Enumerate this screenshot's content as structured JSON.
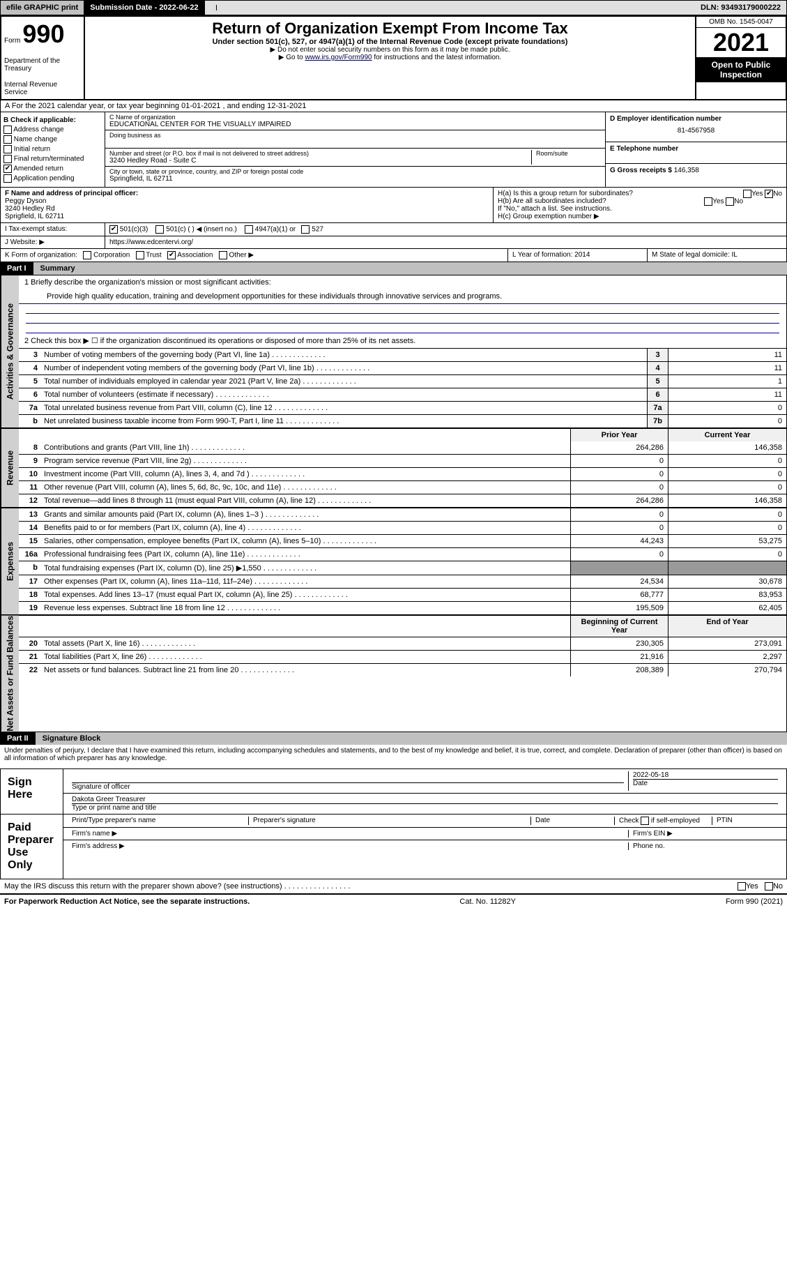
{
  "topbar": {
    "efile": "efile GRAPHIC print",
    "subdate_lbl": "Submission Date - 2022-06-22",
    "dln": "DLN: 93493179000222"
  },
  "header": {
    "form_word": "Form",
    "form_no": "990",
    "dept": "Department of the Treasury",
    "irs": "Internal Revenue Service",
    "title": "Return of Organization Exempt From Income Tax",
    "sub": "Under section 501(c), 527, or 4947(a)(1) of the Internal Revenue Code (except private foundations)",
    "note1": "▶ Do not enter social security numbers on this form as it may be made public.",
    "note2_pre": "▶ Go to ",
    "note2_link": "www.irs.gov/Form990",
    "note2_post": " for instructions and the latest information.",
    "omb": "OMB No. 1545-0047",
    "year": "2021",
    "open": "Open to Public Inspection"
  },
  "rowA": "A For the 2021 calendar year, or tax year beginning 01-01-2021    , and ending 12-31-2021",
  "boxB": {
    "title": "B Check if applicable:",
    "items": [
      "Address change",
      "Name change",
      "Initial return",
      "Final return/terminated",
      "Amended return",
      "Application pending"
    ],
    "checked_idx": 4
  },
  "boxC": {
    "name_lbl": "C Name of organization",
    "name": "EDUCATIONAL CENTER FOR THE VISUALLY IMPAIRED",
    "dba_lbl": "Doing business as",
    "addr_lbl": "Number and street (or P.O. box if mail is not delivered to street address)",
    "room_lbl": "Room/suite",
    "addr": "3240 Hedley Road - Suite C",
    "city_lbl": "City or town, state or province, country, and ZIP or foreign postal code",
    "city": "Springfield, IL  62711"
  },
  "boxD": {
    "lbl": "D Employer identification number",
    "val": "81-4567958"
  },
  "boxE": {
    "lbl": "E Telephone number",
    "val": ""
  },
  "boxG": {
    "lbl": "G Gross receipts $",
    "val": "146,358"
  },
  "boxF": {
    "lbl": "F Name and address of principal officer:",
    "name": "Peggy Dyson",
    "addr1": "3240 Hedley Rd",
    "addr2": "Sprigfield, IL  62711"
  },
  "boxH": {
    "a": "H(a)  Is this a group return for subordinates?",
    "b": "H(b)  Are all subordinates included?",
    "b_note": "If \"No,\" attach a list. See instructions.",
    "c": "H(c)  Group exemption number ▶",
    "yes": "Yes",
    "no": "No"
  },
  "rowI": {
    "lbl": "I   Tax-exempt status:",
    "opts": [
      "501(c)(3)",
      "501(c) (  ) ◀ (insert no.)",
      "4947(a)(1) or",
      "527"
    ]
  },
  "rowJ": {
    "lbl": "J   Website: ▶",
    "val": "https://www.edcentervi.org/"
  },
  "rowK": {
    "lbl": "K Form of organization:",
    "opts": [
      "Corporation",
      "Trust",
      "Association",
      "Other ▶"
    ],
    "checked_idx": 2,
    "L": "L Year of formation: 2014",
    "M": "M State of legal domicile: IL"
  },
  "part1": {
    "num": "Part I",
    "title": "Summary"
  },
  "summary": {
    "l1": "1   Briefly describe the organization's mission or most significant activities:",
    "mission": "Provide high quality education, training and development opportunities for these individuals through innovative services and programs.",
    "l2": "2   Check this box ▶ ☐  if the organization discontinued its operations or disposed of more than 25% of its net assets."
  },
  "gov_lines": [
    {
      "n": "3",
      "d": "Number of voting members of the governing body (Part VI, line 1a)",
      "b": "3",
      "v": "11"
    },
    {
      "n": "4",
      "d": "Number of independent voting members of the governing body (Part VI, line 1b)",
      "b": "4",
      "v": "11"
    },
    {
      "n": "5",
      "d": "Total number of individuals employed in calendar year 2021 (Part V, line 2a)",
      "b": "5",
      "v": "1"
    },
    {
      "n": "6",
      "d": "Total number of volunteers (estimate if necessary)",
      "b": "6",
      "v": "11"
    },
    {
      "n": "7a",
      "d": "Total unrelated business revenue from Part VIII, column (C), line 12",
      "b": "7a",
      "v": "0"
    },
    {
      "n": "b",
      "d": "Net unrelated business taxable income from Form 990-T, Part I, line 11",
      "b": "7b",
      "v": "0"
    }
  ],
  "rev_hdr": {
    "prior": "Prior Year",
    "curr": "Current Year"
  },
  "rev_lines": [
    {
      "n": "8",
      "d": "Contributions and grants (Part VIII, line 1h)",
      "p": "264,286",
      "c": "146,358"
    },
    {
      "n": "9",
      "d": "Program service revenue (Part VIII, line 2g)",
      "p": "0",
      "c": "0"
    },
    {
      "n": "10",
      "d": "Investment income (Part VIII, column (A), lines 3, 4, and 7d )",
      "p": "0",
      "c": "0"
    },
    {
      "n": "11",
      "d": "Other revenue (Part VIII, column (A), lines 5, 6d, 8c, 9c, 10c, and 11e)",
      "p": "0",
      "c": "0"
    },
    {
      "n": "12",
      "d": "Total revenue—add lines 8 through 11 (must equal Part VIII, column (A), line 12)",
      "p": "264,286",
      "c": "146,358"
    }
  ],
  "exp_lines": [
    {
      "n": "13",
      "d": "Grants and similar amounts paid (Part IX, column (A), lines 1–3 )",
      "p": "0",
      "c": "0"
    },
    {
      "n": "14",
      "d": "Benefits paid to or for members (Part IX, column (A), line 4)",
      "p": "0",
      "c": "0"
    },
    {
      "n": "15",
      "d": "Salaries, other compensation, employee benefits (Part IX, column (A), lines 5–10)",
      "p": "44,243",
      "c": "53,275"
    },
    {
      "n": "16a",
      "d": "Professional fundraising fees (Part IX, column (A), line 11e)",
      "p": "0",
      "c": "0"
    },
    {
      "n": "b",
      "d": "Total fundraising expenses (Part IX, column (D), line 25) ▶1,550",
      "p": "",
      "c": "",
      "grey": true
    },
    {
      "n": "17",
      "d": "Other expenses (Part IX, column (A), lines 11a–11d, 11f–24e)",
      "p": "24,534",
      "c": "30,678"
    },
    {
      "n": "18",
      "d": "Total expenses. Add lines 13–17 (must equal Part IX, column (A), line 25)",
      "p": "68,777",
      "c": "83,953"
    },
    {
      "n": "19",
      "d": "Revenue less expenses. Subtract line 18 from line 12",
      "p": "195,509",
      "c": "62,405"
    }
  ],
  "na_hdr": {
    "prior": "Beginning of Current Year",
    "curr": "End of Year"
  },
  "na_lines": [
    {
      "n": "20",
      "d": "Total assets (Part X, line 16)",
      "p": "230,305",
      "c": "273,091"
    },
    {
      "n": "21",
      "d": "Total liabilities (Part X, line 26)",
      "p": "21,916",
      "c": "2,297"
    },
    {
      "n": "22",
      "d": "Net assets or fund balances. Subtract line 21 from line 20",
      "p": "208,389",
      "c": "270,794"
    }
  ],
  "side_labels": {
    "gov": "Activities & Governance",
    "rev": "Revenue",
    "exp": "Expenses",
    "na": "Net Assets or Fund Balances"
  },
  "part2": {
    "num": "Part II",
    "title": "Signature Block"
  },
  "sig": {
    "decl": "Under penalties of perjury, I declare that I have examined this return, including accompanying schedules and statements, and to the best of my knowledge and belief, it is true, correct, and complete. Declaration of preparer (other than officer) is based on all information of which preparer has any knowledge.",
    "sign_here": "Sign Here",
    "sig_officer": "Signature of officer",
    "date": "Date",
    "date_val": "2022-05-18",
    "name_title": "Dakota Greer Treasurer",
    "name_title_lbl": "Type or print name and title",
    "paid": "Paid Preparer Use Only",
    "c1": "Print/Type preparer's name",
    "c2": "Preparer's signature",
    "c3": "Date",
    "c4a": "Check",
    "c4b": "if self-employed",
    "c5": "PTIN",
    "firm_name": "Firm's name  ▶",
    "firm_ein": "Firm's EIN ▶",
    "firm_addr": "Firm's address ▶",
    "phone": "Phone no.",
    "irs_discuss": "May the IRS discuss this return with the preparer shown above? (see instructions)   .   .   .   .   .   .   .   .   .   .   .   .   .   .   .   .",
    "yes": "Yes",
    "no": "No"
  },
  "footer": {
    "left": "For Paperwork Reduction Act Notice, see the separate instructions.",
    "mid": "Cat. No. 11282Y",
    "right": "Form 990 (2021)"
  }
}
